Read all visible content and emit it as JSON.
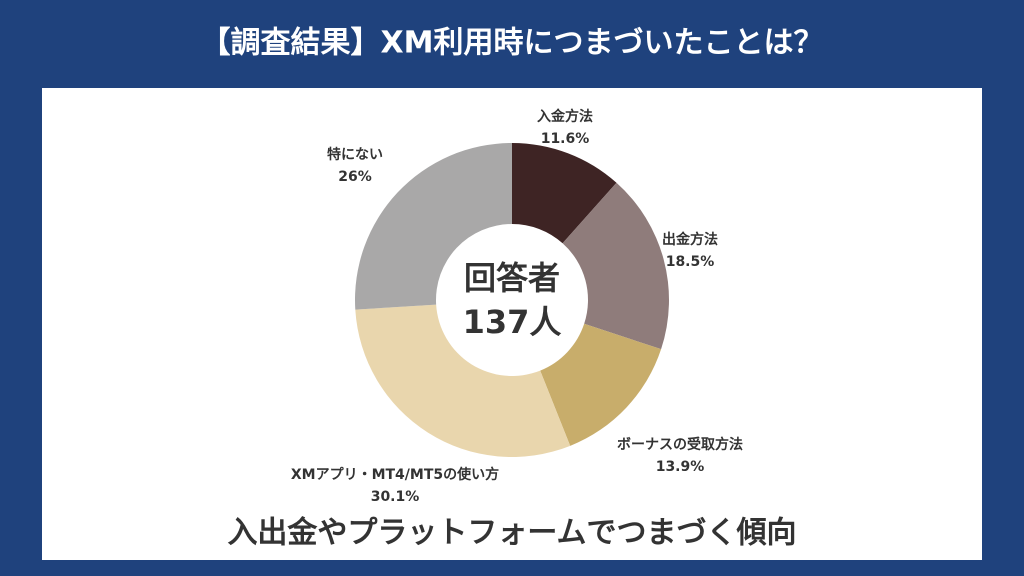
{
  "chart_data": {
    "type": "pie",
    "title": "【調査結果】XM利用時につまづいたことは？",
    "subtitle": "入出金やプラットフォームでつまづく傾向",
    "center_label": [
      "回答者",
      "137人"
    ],
    "categories": [
      "入金方法",
      "出金方法",
      "ボーナスの受取方法",
      "XMアプリ・MT4/MT5の使い方",
      "特にない"
    ],
    "values": [
      11.6,
      18.5,
      13.9,
      30.1,
      26
    ],
    "value_labels": [
      "11.6%",
      "18.5%",
      "13.9%",
      "30.1%",
      "26%"
    ],
    "colors": [
      "#3e2424",
      "#8f7c7b",
      "#c8ad6b",
      "#e9d6ad",
      "#a9a8a8"
    ],
    "donut": true
  }
}
